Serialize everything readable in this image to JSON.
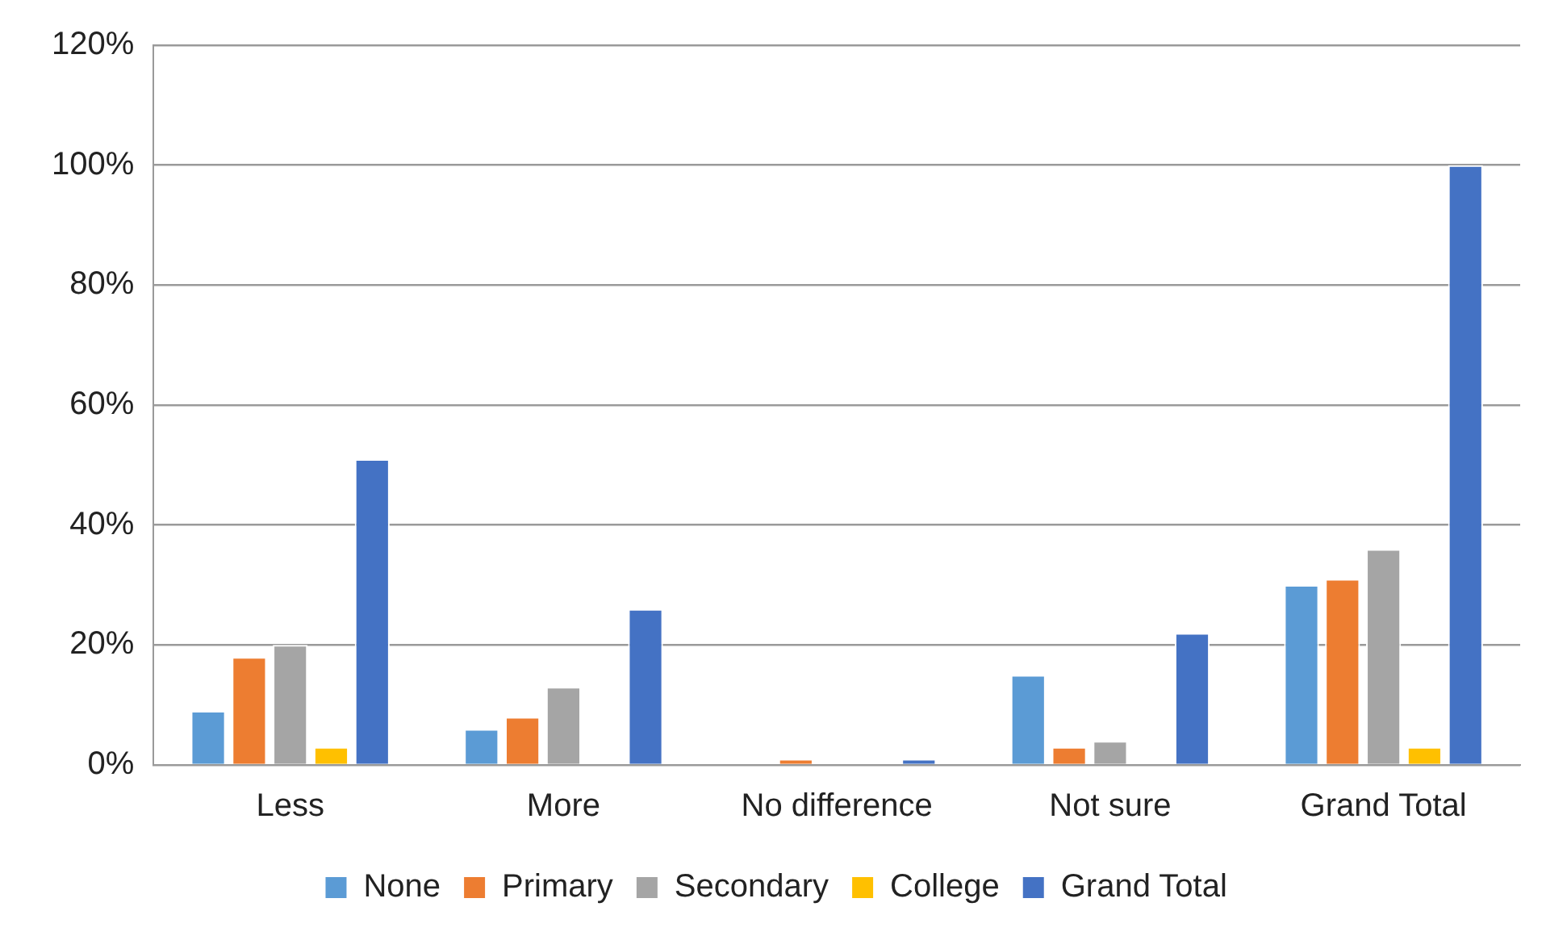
{
  "chart_data": {
    "type": "bar",
    "categories": [
      "Less",
      "More",
      "No difference",
      "Not sure",
      "Grand Total"
    ],
    "series": [
      {
        "name": "None",
        "color": "#5b9bd5",
        "values": [
          9,
          6,
          0,
          15,
          30
        ]
      },
      {
        "name": "Primary",
        "color": "#ed7d31",
        "values": [
          18,
          8,
          1,
          3,
          31
        ]
      },
      {
        "name": "Secondary",
        "color": "#a5a5a5",
        "values": [
          20,
          13,
          0,
          4,
          36
        ]
      },
      {
        "name": "College",
        "color": "#ffc000",
        "values": [
          3,
          0,
          0,
          0,
          3
        ]
      },
      {
        "name": "Grand Total",
        "color": "#4472c4",
        "values": [
          51,
          26,
          1,
          22,
          100
        ]
      }
    ],
    "ylim": [
      0,
      120
    ],
    "yticks": [
      {
        "value": 0,
        "label": "0%"
      },
      {
        "value": 20,
        "label": "20%"
      },
      {
        "value": 40,
        "label": "40%"
      },
      {
        "value": 60,
        "label": "60%"
      },
      {
        "value": 80,
        "label": "80%"
      },
      {
        "value": 100,
        "label": "100%"
      },
      {
        "value": 120,
        "label": "120%"
      }
    ],
    "grid": "y",
    "legend": "bottom"
  }
}
